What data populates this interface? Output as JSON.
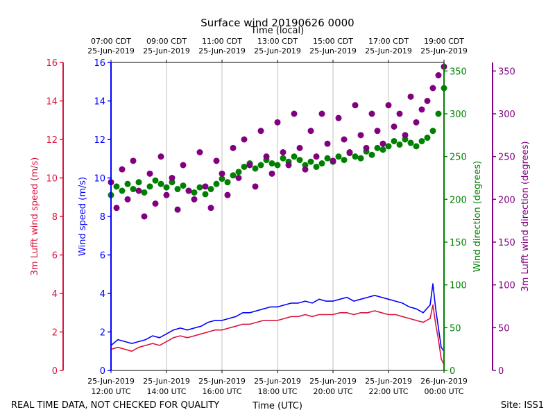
{
  "chart_data": {
    "type": "line+scatter",
    "title": "Surface wind 20190626 0000",
    "top_axis_label": "Time (local)",
    "bottom_axis_label": "Time (UTC)",
    "footer_left": "REAL TIME DATA, NOT CHECKED FOR QUALITY",
    "footer_right": "Site: ISS1",
    "x_range_hours_utc": [
      12,
      24
    ],
    "top_ticks": [
      {
        "h": 12,
        "l1": "07:00 CDT",
        "l2": "25-Jun-2019"
      },
      {
        "h": 14,
        "l1": "09:00 CDT",
        "l2": "25-Jun-2019"
      },
      {
        "h": 16,
        "l1": "11:00 CDT",
        "l2": "25-Jun-2019"
      },
      {
        "h": 18,
        "l1": "13:00 CDT",
        "l2": "25-Jun-2019"
      },
      {
        "h": 20,
        "l1": "15:00 CDT",
        "l2": "25-Jun-2019"
      },
      {
        "h": 22,
        "l1": "17:00 CDT",
        "l2": "25-Jun-2019"
      },
      {
        "h": 24,
        "l1": "19:00 CDT",
        "l2": "25-Jun-2019"
      }
    ],
    "bottom_ticks": [
      {
        "h": 12,
        "l1": "25-Jun-2019",
        "l2": "12:00 UTC"
      },
      {
        "h": 14,
        "l1": "25-Jun-2019",
        "l2": "14:00 UTC"
      },
      {
        "h": 16,
        "l1": "25-Jun-2019",
        "l2": "16:00 UTC"
      },
      {
        "h": 18,
        "l1": "25-Jun-2019",
        "l2": "18:00 UTC"
      },
      {
        "h": 20,
        "l1": "25-Jun-2019",
        "l2": "20:00 UTC"
      },
      {
        "h": 22,
        "l1": "25-Jun-2019",
        "l2": "22:00 UTC"
      },
      {
        "h": 24,
        "l1": "26-Jun-2019",
        "l2": "00:00 UTC"
      }
    ],
    "axes": {
      "lufft_speed": {
        "label": "3m Lufft wind speed (m/s)",
        "range": [
          0,
          16
        ],
        "ticks": [
          0,
          2,
          4,
          6,
          8,
          10,
          12,
          14,
          16
        ],
        "color": "#dc143c"
      },
      "wind_speed": {
        "label": "Wind speed (m/s)",
        "range": [
          0,
          16
        ],
        "ticks": [
          0,
          2,
          4,
          6,
          8,
          10,
          12,
          14,
          16
        ],
        "color": "#0000ff"
      },
      "wind_dir": {
        "label": "Wind direction (degrees)",
        "range": [
          0,
          360
        ],
        "ticks": [
          0,
          50,
          100,
          150,
          200,
          250,
          300,
          350
        ],
        "color": "#008000"
      },
      "lufft_dir": {
        "label": "3m Lufft wind direction (degrees)",
        "range": [
          0,
          360
        ],
        "ticks": [
          0,
          50,
          100,
          150,
          200,
          250,
          300,
          350
        ],
        "color": "#800080"
      }
    },
    "series": [
      {
        "name": "Wind speed",
        "kind": "line",
        "axis": "wind_speed",
        "points": [
          [
            12.0,
            1.3
          ],
          [
            12.25,
            1.6
          ],
          [
            12.5,
            1.5
          ],
          [
            12.75,
            1.4
          ],
          [
            13.0,
            1.5
          ],
          [
            13.25,
            1.6
          ],
          [
            13.5,
            1.8
          ],
          [
            13.75,
            1.7
          ],
          [
            14.0,
            1.9
          ],
          [
            14.25,
            2.1
          ],
          [
            14.5,
            2.2
          ],
          [
            14.75,
            2.1
          ],
          [
            15.0,
            2.2
          ],
          [
            15.25,
            2.3
          ],
          [
            15.5,
            2.5
          ],
          [
            15.75,
            2.6
          ],
          [
            16.0,
            2.6
          ],
          [
            16.25,
            2.7
          ],
          [
            16.5,
            2.8
          ],
          [
            16.75,
            3.0
          ],
          [
            17.0,
            3.0
          ],
          [
            17.25,
            3.1
          ],
          [
            17.5,
            3.2
          ],
          [
            17.75,
            3.3
          ],
          [
            18.0,
            3.3
          ],
          [
            18.25,
            3.4
          ],
          [
            18.5,
            3.5
          ],
          [
            18.75,
            3.5
          ],
          [
            19.0,
            3.6
          ],
          [
            19.25,
            3.5
          ],
          [
            19.5,
            3.7
          ],
          [
            19.75,
            3.6
          ],
          [
            20.0,
            3.6
          ],
          [
            20.25,
            3.7
          ],
          [
            20.5,
            3.8
          ],
          [
            20.75,
            3.6
          ],
          [
            21.0,
            3.7
          ],
          [
            21.25,
            3.8
          ],
          [
            21.5,
            3.9
          ],
          [
            21.75,
            3.8
          ],
          [
            22.0,
            3.7
          ],
          [
            22.25,
            3.6
          ],
          [
            22.5,
            3.5
          ],
          [
            22.75,
            3.3
          ],
          [
            23.0,
            3.2
          ],
          [
            23.25,
            3.0
          ],
          [
            23.5,
            3.4
          ],
          [
            23.6,
            4.5
          ],
          [
            23.7,
            3.2
          ],
          [
            23.8,
            2.2
          ],
          [
            23.9,
            1.2
          ],
          [
            24.0,
            1.0
          ]
        ]
      },
      {
        "name": "3m Lufft wind speed",
        "kind": "line",
        "axis": "lufft_speed",
        "points": [
          [
            12.0,
            1.1
          ],
          [
            12.25,
            1.2
          ],
          [
            12.5,
            1.1
          ],
          [
            12.75,
            1.0
          ],
          [
            13.0,
            1.2
          ],
          [
            13.25,
            1.3
          ],
          [
            13.5,
            1.4
          ],
          [
            13.75,
            1.3
          ],
          [
            14.0,
            1.5
          ],
          [
            14.25,
            1.7
          ],
          [
            14.5,
            1.8
          ],
          [
            14.75,
            1.7
          ],
          [
            15.0,
            1.8
          ],
          [
            15.25,
            1.9
          ],
          [
            15.5,
            2.0
          ],
          [
            15.75,
            2.1
          ],
          [
            16.0,
            2.1
          ],
          [
            16.25,
            2.2
          ],
          [
            16.5,
            2.3
          ],
          [
            16.75,
            2.4
          ],
          [
            17.0,
            2.4
          ],
          [
            17.25,
            2.5
          ],
          [
            17.5,
            2.6
          ],
          [
            17.75,
            2.6
          ],
          [
            18.0,
            2.6
          ],
          [
            18.25,
            2.7
          ],
          [
            18.5,
            2.8
          ],
          [
            18.75,
            2.8
          ],
          [
            19.0,
            2.9
          ],
          [
            19.25,
            2.8
          ],
          [
            19.5,
            2.9
          ],
          [
            19.75,
            2.9
          ],
          [
            20.0,
            2.9
          ],
          [
            20.25,
            3.0
          ],
          [
            20.5,
            3.0
          ],
          [
            20.75,
            2.9
          ],
          [
            21.0,
            3.0
          ],
          [
            21.25,
            3.0
          ],
          [
            21.5,
            3.1
          ],
          [
            21.75,
            3.0
          ],
          [
            22.0,
            2.9
          ],
          [
            22.25,
            2.9
          ],
          [
            22.5,
            2.8
          ],
          [
            22.75,
            2.7
          ],
          [
            23.0,
            2.6
          ],
          [
            23.25,
            2.5
          ],
          [
            23.5,
            2.7
          ],
          [
            23.6,
            3.4
          ],
          [
            23.7,
            2.4
          ],
          [
            23.8,
            1.6
          ],
          [
            23.9,
            0.6
          ],
          [
            24.0,
            0.3
          ]
        ]
      },
      {
        "name": "Wind direction",
        "kind": "scatter",
        "axis": "wind_dir",
        "points": [
          [
            12.0,
            205
          ],
          [
            12.2,
            215
          ],
          [
            12.4,
            210
          ],
          [
            12.6,
            218
          ],
          [
            12.8,
            212
          ],
          [
            13.0,
            220
          ],
          [
            13.2,
            208
          ],
          [
            13.4,
            215
          ],
          [
            13.6,
            222
          ],
          [
            13.8,
            218
          ],
          [
            14.0,
            214
          ],
          [
            14.2,
            220
          ],
          [
            14.4,
            212
          ],
          [
            14.6,
            216
          ],
          [
            14.8,
            210
          ],
          [
            15.0,
            208
          ],
          [
            15.2,
            214
          ],
          [
            15.4,
            206
          ],
          [
            15.6,
            212
          ],
          [
            15.8,
            218
          ],
          [
            16.0,
            224
          ],
          [
            16.2,
            220
          ],
          [
            16.4,
            228
          ],
          [
            16.6,
            232
          ],
          [
            16.8,
            238
          ],
          [
            17.0,
            242
          ],
          [
            17.2,
            236
          ],
          [
            17.4,
            240
          ],
          [
            17.6,
            246
          ],
          [
            17.8,
            242
          ],
          [
            18.0,
            240
          ],
          [
            18.2,
            248
          ],
          [
            18.4,
            244
          ],
          [
            18.6,
            250
          ],
          [
            18.8,
            246
          ],
          [
            19.0,
            240
          ],
          [
            19.2,
            244
          ],
          [
            19.4,
            238
          ],
          [
            19.6,
            242
          ],
          [
            19.8,
            248
          ],
          [
            20.0,
            244
          ],
          [
            20.2,
            250
          ],
          [
            20.4,
            246
          ],
          [
            20.6,
            254
          ],
          [
            20.8,
            250
          ],
          [
            21.0,
            248
          ],
          [
            21.2,
            256
          ],
          [
            21.4,
            252
          ],
          [
            21.6,
            260
          ],
          [
            21.8,
            258
          ],
          [
            22.0,
            262
          ],
          [
            22.2,
            268
          ],
          [
            22.4,
            264
          ],
          [
            22.6,
            270
          ],
          [
            22.8,
            266
          ],
          [
            23.0,
            262
          ],
          [
            23.2,
            268
          ],
          [
            23.4,
            272
          ],
          [
            23.6,
            280
          ],
          [
            23.8,
            300
          ],
          [
            24.0,
            330
          ]
        ]
      },
      {
        "name": "3m Lufft wind direction",
        "kind": "scatter",
        "axis": "lufft_dir",
        "points": [
          [
            12.0,
            220
          ],
          [
            12.2,
            190
          ],
          [
            12.4,
            235
          ],
          [
            12.6,
            200
          ],
          [
            12.8,
            245
          ],
          [
            13.0,
            210
          ],
          [
            13.2,
            180
          ],
          [
            13.4,
            230
          ],
          [
            13.6,
            195
          ],
          [
            13.8,
            250
          ],
          [
            14.0,
            205
          ],
          [
            14.2,
            225
          ],
          [
            14.4,
            188
          ],
          [
            14.6,
            240
          ],
          [
            14.8,
            210
          ],
          [
            15.0,
            200
          ],
          [
            15.2,
            255
          ],
          [
            15.4,
            215
          ],
          [
            15.6,
            190
          ],
          [
            15.8,
            245
          ],
          [
            16.0,
            230
          ],
          [
            16.2,
            205
          ],
          [
            16.4,
            260
          ],
          [
            16.6,
            225
          ],
          [
            16.8,
            270
          ],
          [
            17.0,
            240
          ],
          [
            17.2,
            215
          ],
          [
            17.4,
            280
          ],
          [
            17.6,
            250
          ],
          [
            17.8,
            230
          ],
          [
            18.0,
            290
          ],
          [
            18.2,
            255
          ],
          [
            18.4,
            240
          ],
          [
            18.6,
            300
          ],
          [
            18.8,
            260
          ],
          [
            19.0,
            235
          ],
          [
            19.2,
            280
          ],
          [
            19.4,
            250
          ],
          [
            19.6,
            300
          ],
          [
            19.8,
            265
          ],
          [
            20.0,
            245
          ],
          [
            20.2,
            295
          ],
          [
            20.4,
            270
          ],
          [
            20.6,
            255
          ],
          [
            20.8,
            310
          ],
          [
            21.0,
            275
          ],
          [
            21.2,
            260
          ],
          [
            21.4,
            300
          ],
          [
            21.6,
            280
          ],
          [
            21.8,
            265
          ],
          [
            22.0,
            310
          ],
          [
            22.2,
            285
          ],
          [
            22.4,
            300
          ],
          [
            22.6,
            275
          ],
          [
            22.8,
            320
          ],
          [
            23.0,
            290
          ],
          [
            23.2,
            305
          ],
          [
            23.4,
            315
          ],
          [
            23.6,
            330
          ],
          [
            23.8,
            345
          ],
          [
            24.0,
            355
          ]
        ]
      }
    ]
  }
}
